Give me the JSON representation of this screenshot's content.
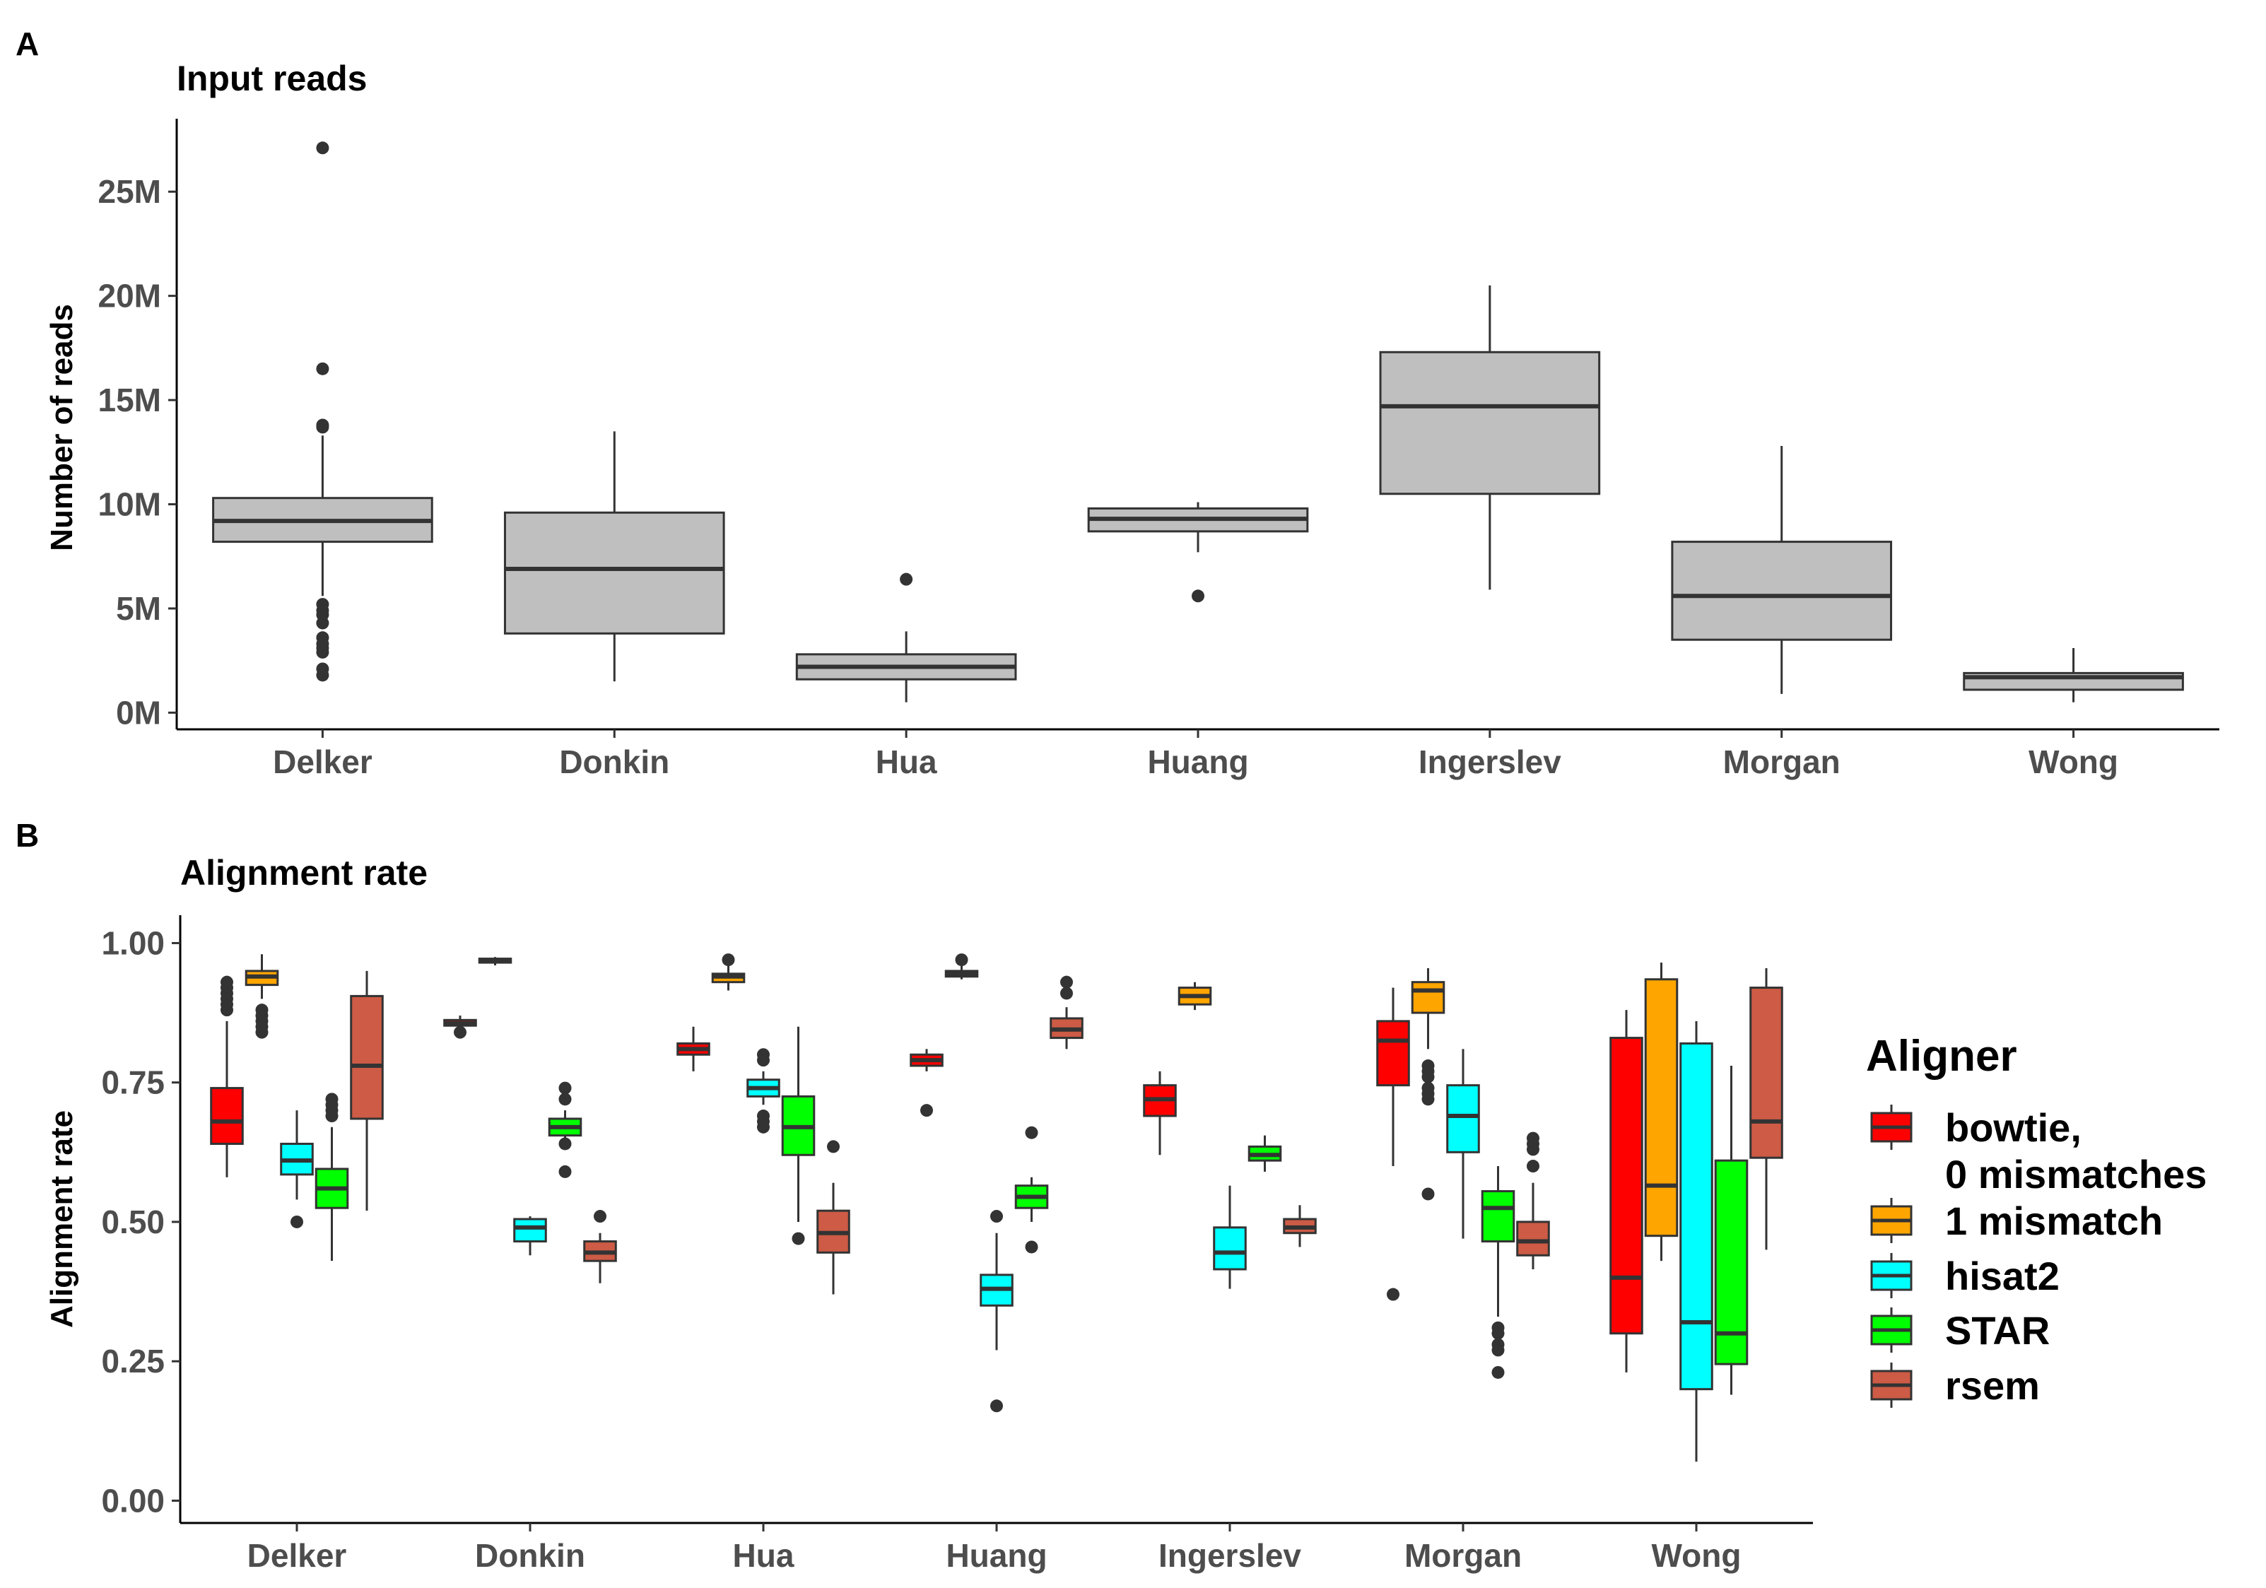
{
  "chart_data": [
    {
      "panel": "A",
      "type": "box",
      "title": "Input reads",
      "xlabel": "",
      "ylabel": "Number of reads",
      "ylim": [
        -0.8,
        28.5
      ],
      "yticks": [
        0,
        5,
        10,
        15,
        20,
        25
      ],
      "ytick_labels": [
        "0M",
        "5M",
        "10M",
        "15M",
        "20M",
        "25M"
      ],
      "categories": [
        "Delker",
        "Donkin",
        "Hua",
        "Huang",
        "Ingerslev",
        "Morgan",
        "Wong"
      ],
      "fill": "#bfbfbf",
      "boxes": [
        {
          "q1": 8.2,
          "median": 9.2,
          "q3": 10.3,
          "low": 5.6,
          "high": 13.3,
          "outliers": [
            27.1,
            16.5,
            13.8,
            13.7,
            5.2,
            4.9,
            4.7,
            4.3,
            3.6,
            3.3,
            3.1,
            2.9,
            2.1,
            1.8
          ]
        },
        {
          "q1": 3.8,
          "median": 6.9,
          "q3": 9.6,
          "low": 1.5,
          "high": 13.5,
          "outliers": []
        },
        {
          "q1": 1.6,
          "median": 2.2,
          "q3": 2.8,
          "low": 0.5,
          "high": 3.9,
          "outliers": [
            6.4
          ]
        },
        {
          "q1": 8.7,
          "median": 9.3,
          "q3": 9.8,
          "low": 7.7,
          "high": 10.1,
          "outliers": [
            5.6
          ]
        },
        {
          "q1": 10.5,
          "median": 14.7,
          "q3": 17.3,
          "low": 5.9,
          "high": 20.5,
          "outliers": []
        },
        {
          "q1": 3.5,
          "median": 5.6,
          "q3": 8.2,
          "low": 0.9,
          "high": 12.8,
          "outliers": []
        },
        {
          "q1": 1.1,
          "median": 1.7,
          "q3": 1.9,
          "low": 0.5,
          "high": 3.1,
          "outliers": []
        }
      ]
    },
    {
      "panel": "B",
      "type": "box",
      "title": "Alignment rate",
      "xlabel": "",
      "ylabel": "Alignment rate",
      "ylim": [
        -0.04,
        1.05
      ],
      "yticks": [
        0,
        0.25,
        0.5,
        0.75,
        1.0
      ],
      "ytick_labels": [
        "0.00",
        "0.25",
        "0.50",
        "0.75",
        "1.00"
      ],
      "categories": [
        "Delker",
        "Donkin",
        "Hua",
        "Huang",
        "Ingerslev",
        "Morgan",
        "Wong"
      ],
      "legend_title": "Aligner",
      "legend_position": "right",
      "series": [
        {
          "name": "bowtie,\n0 mismatches",
          "color": "#ff0000",
          "boxes": [
            {
              "q1": 0.64,
              "median": 0.68,
              "q3": 0.74,
              "low": 0.58,
              "high": 0.86,
              "outliers": [
                0.93,
                0.92,
                0.91,
                0.9,
                0.89,
                0.88
              ]
            },
            {
              "q1": 0.852,
              "median": 0.856,
              "q3": 0.862,
              "low": 0.85,
              "high": 0.87,
              "outliers": [
                0.84
              ]
            },
            {
              "q1": 0.8,
              "median": 0.81,
              "q3": 0.82,
              "low": 0.77,
              "high": 0.85,
              "outliers": []
            },
            {
              "q1": 0.78,
              "median": 0.79,
              "q3": 0.8,
              "low": 0.77,
              "high": 0.81,
              "outliers": [
                0.7
              ]
            },
            {
              "q1": 0.69,
              "median": 0.72,
              "q3": 0.745,
              "low": 0.62,
              "high": 0.77,
              "outliers": []
            },
            {
              "q1": 0.745,
              "median": 0.825,
              "q3": 0.86,
              "low": 0.6,
              "high": 0.92,
              "outliers": [
                0.37
              ]
            },
            {
              "q1": 0.3,
              "median": 0.4,
              "q3": 0.83,
              "low": 0.23,
              "high": 0.88,
              "outliers": []
            }
          ]
        },
        {
          "name": "1 mismatch",
          "color": "#ffa500",
          "boxes": [
            {
              "q1": 0.925,
              "median": 0.94,
              "q3": 0.95,
              "low": 0.9,
              "high": 0.98,
              "outliers": [
                0.88,
                0.87,
                0.86,
                0.85,
                0.84
              ]
            },
            {
              "q1": 0.965,
              "median": 0.968,
              "q3": 0.972,
              "low": 0.96,
              "high": 0.975,
              "outliers": []
            },
            {
              "q1": 0.93,
              "median": 0.94,
              "q3": 0.945,
              "low": 0.915,
              "high": 0.96,
              "outliers": [
                0.97
              ]
            },
            {
              "q1": 0.94,
              "median": 0.945,
              "q3": 0.95,
              "low": 0.935,
              "high": 0.96,
              "outliers": [
                0.97
              ]
            },
            {
              "q1": 0.89,
              "median": 0.905,
              "q3": 0.92,
              "low": 0.88,
              "high": 0.93,
              "outliers": []
            },
            {
              "q1": 0.875,
              "median": 0.915,
              "q3": 0.93,
              "low": 0.81,
              "high": 0.955,
              "outliers": [
                0.78,
                0.77,
                0.76,
                0.74,
                0.73,
                0.72,
                0.55
              ]
            },
            {
              "q1": 0.475,
              "median": 0.565,
              "q3": 0.935,
              "low": 0.43,
              "high": 0.965,
              "outliers": []
            }
          ]
        },
        {
          "name": "hisat2",
          "color": "#00ffff",
          "boxes": [
            {
              "q1": 0.585,
              "median": 0.61,
              "q3": 0.64,
              "low": 0.54,
              "high": 0.7,
              "outliers": [
                0.5
              ]
            },
            {
              "q1": 0.465,
              "median": 0.49,
              "q3": 0.505,
              "low": 0.44,
              "high": 0.51,
              "outliers": []
            },
            {
              "q1": 0.725,
              "median": 0.74,
              "q3": 0.755,
              "low": 0.71,
              "high": 0.77,
              "outliers": [
                0.8,
                0.79,
                0.69,
                0.68,
                0.67
              ]
            },
            {
              "q1": 0.35,
              "median": 0.38,
              "q3": 0.405,
              "low": 0.27,
              "high": 0.48,
              "outliers": [
                0.51,
                0.17
              ]
            },
            {
              "q1": 0.415,
              "median": 0.445,
              "q3": 0.49,
              "low": 0.38,
              "high": 0.565,
              "outliers": []
            },
            {
              "q1": 0.625,
              "median": 0.69,
              "q3": 0.745,
              "low": 0.47,
              "high": 0.81,
              "outliers": []
            },
            {
              "q1": 0.2,
              "median": 0.32,
              "q3": 0.82,
              "low": 0.07,
              "high": 0.86,
              "outliers": []
            }
          ]
        },
        {
          "name": "STAR",
          "color": "#00ff00",
          "boxes": [
            {
              "q1": 0.525,
              "median": 0.56,
              "q3": 0.595,
              "low": 0.43,
              "high": 0.67,
              "outliers": [
                0.72,
                0.71,
                0.7,
                0.69
              ]
            },
            {
              "q1": 0.655,
              "median": 0.67,
              "q3": 0.685,
              "low": 0.64,
              "high": 0.7,
              "outliers": [
                0.74,
                0.72,
                0.64,
                0.59
              ]
            },
            {
              "q1": 0.62,
              "median": 0.67,
              "q3": 0.725,
              "low": 0.5,
              "high": 0.85,
              "outliers": [
                0.47
              ]
            },
            {
              "q1": 0.525,
              "median": 0.545,
              "q3": 0.565,
              "low": 0.5,
              "high": 0.58,
              "outliers": [
                0.66,
                0.455
              ]
            },
            {
              "q1": 0.61,
              "median": 0.62,
              "q3": 0.635,
              "low": 0.59,
              "high": 0.655,
              "outliers": []
            },
            {
              "q1": 0.465,
              "median": 0.525,
              "q3": 0.555,
              "low": 0.33,
              "high": 0.6,
              "outliers": [
                0.31,
                0.3,
                0.28,
                0.27,
                0.23
              ]
            },
            {
              "q1": 0.245,
              "median": 0.3,
              "q3": 0.61,
              "low": 0.19,
              "high": 0.78,
              "outliers": []
            }
          ]
        },
        {
          "name": "rsem",
          "color": "#cd5b45",
          "boxes": [
            {
              "q1": 0.685,
              "median": 0.78,
              "q3": 0.905,
              "low": 0.52,
              "high": 0.95,
              "outliers": []
            },
            {
              "q1": 0.43,
              "median": 0.445,
              "q3": 0.465,
              "low": 0.39,
              "high": 0.48,
              "outliers": [
                0.51
              ]
            },
            {
              "q1": 0.445,
              "median": 0.48,
              "q3": 0.52,
              "low": 0.37,
              "high": 0.57,
              "outliers": [
                0.635
              ]
            },
            {
              "q1": 0.83,
              "median": 0.845,
              "q3": 0.865,
              "low": 0.81,
              "high": 0.885,
              "outliers": [
                0.93,
                0.91
              ]
            },
            {
              "q1": 0.48,
              "median": 0.49,
              "q3": 0.505,
              "low": 0.455,
              "high": 0.53,
              "outliers": []
            },
            {
              "q1": 0.44,
              "median": 0.465,
              "q3": 0.5,
              "low": 0.415,
              "high": 0.57,
              "outliers": [
                0.65,
                0.64,
                0.63,
                0.6
              ]
            },
            {
              "q1": 0.615,
              "median": 0.68,
              "q3": 0.92,
              "low": 0.45,
              "high": 0.955,
              "outliers": []
            }
          ]
        }
      ]
    }
  ]
}
